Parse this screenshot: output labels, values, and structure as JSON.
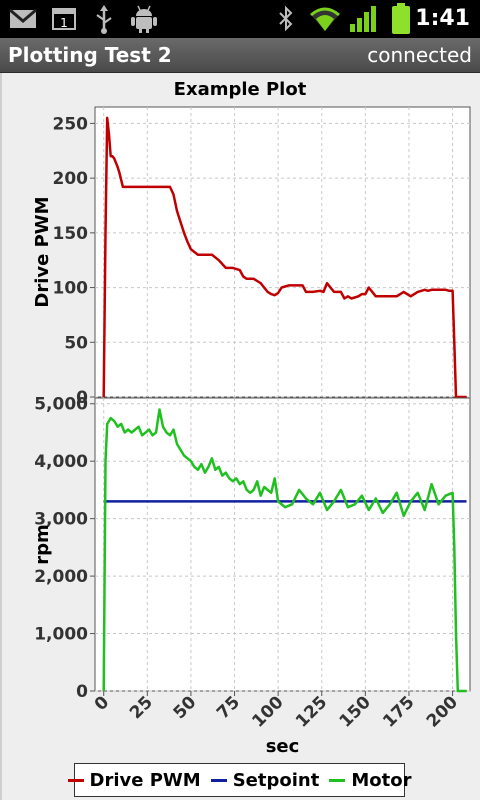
{
  "status_bar": {
    "time": "1:41",
    "icons": [
      "gmail-icon",
      "notification-count-icon",
      "usb-icon",
      "android-debug-icon",
      "bluetooth-icon",
      "wifi-icon",
      "signal-icon",
      "battery-icon"
    ],
    "notification_count": "1"
  },
  "app": {
    "title": "Plotting Test 2",
    "connection": "connected"
  },
  "colors": {
    "drive_pwm": "#c00000",
    "setpoint": "#1020a0",
    "motor": "#20c020"
  },
  "chart_data": [
    {
      "type": "line",
      "title": "Example Plot",
      "ylabel": "Drive PWM",
      "xlim": [
        -5,
        210
      ],
      "ylim": [
        0,
        265
      ],
      "yticks": [
        0,
        50,
        100,
        150,
        200,
        250
      ],
      "grid": true,
      "series": [
        {
          "name": "Drive PWM",
          "color": "#c00000",
          "x": [
            0,
            1,
            2,
            3,
            4,
            5,
            6,
            8,
            9,
            11,
            13,
            14,
            20,
            30,
            38,
            40,
            42,
            44,
            46,
            48,
            50,
            54,
            58,
            62,
            66,
            70,
            74,
            78,
            80,
            82,
            86,
            88,
            90,
            92,
            94,
            96,
            98,
            100,
            102,
            104,
            106,
            110,
            114,
            116,
            120,
            124,
            126,
            128,
            132,
            136,
            138,
            140,
            142,
            146,
            148,
            150,
            152,
            156,
            160,
            164,
            168,
            172,
            176,
            180,
            184,
            186,
            188,
            192,
            196,
            198,
            200,
            201,
            202,
            204,
            208
          ],
          "y": [
            0,
            150,
            255,
            240,
            220,
            220,
            218,
            210,
            205,
            192,
            192,
            192,
            192,
            192,
            192,
            185,
            170,
            160,
            150,
            142,
            135,
            130,
            130,
            130,
            125,
            118,
            118,
            116,
            110,
            108,
            108,
            106,
            104,
            100,
            96,
            94,
            93,
            95,
            100,
            101,
            102,
            102,
            102,
            96,
            96,
            97,
            96,
            104,
            96,
            96,
            90,
            92,
            90,
            92,
            94,
            94,
            100,
            92,
            92,
            92,
            92,
            96,
            92,
            96,
            98,
            97,
            98,
            98,
            98,
            97,
            97,
            50,
            0,
            0,
            0
          ]
        }
      ]
    },
    {
      "type": "line",
      "ylabel": "rpm",
      "xlabel": "sec",
      "xlim": [
        -5,
        210
      ],
      "ylim": [
        0,
        5100
      ],
      "yticks": [
        0,
        1000,
        2000,
        3000,
        4000,
        5000
      ],
      "yticklabels": [
        "0",
        "1,000",
        "2,000",
        "3,000",
        "4,000",
        "5,000"
      ],
      "xticks": [
        0,
        25,
        50,
        75,
        100,
        125,
        150,
        175,
        200
      ],
      "xticklabels": [
        "0",
        "25",
        "50",
        "75",
        "100",
        "125",
        "150",
        "175",
        "200"
      ],
      "grid": true,
      "series": [
        {
          "name": "Setpoint",
          "color": "#1020a0",
          "x": [
            0,
            208
          ],
          "y": [
            3300,
            3300
          ]
        },
        {
          "name": "Motor",
          "color": "#20c020",
          "x": [
            0,
            1,
            2,
            4,
            6,
            8,
            10,
            12,
            14,
            16,
            18,
            20,
            22,
            24,
            26,
            28,
            30,
            32,
            34,
            36,
            38,
            40,
            42,
            44,
            46,
            48,
            50,
            52,
            54,
            56,
            58,
            60,
            62,
            64,
            66,
            68,
            70,
            72,
            74,
            76,
            78,
            80,
            82,
            84,
            86,
            88,
            90,
            92,
            94,
            96,
            98,
            100,
            104,
            108,
            112,
            116,
            120,
            124,
            128,
            132,
            136,
            140,
            144,
            148,
            152,
            156,
            160,
            164,
            168,
            172,
            176,
            180,
            184,
            188,
            192,
            196,
            200,
            201,
            202,
            203,
            206,
            208
          ],
          "y": [
            0,
            4000,
            4650,
            4750,
            4700,
            4600,
            4650,
            4500,
            4550,
            4500,
            4550,
            4600,
            4450,
            4500,
            4550,
            4450,
            4500,
            4900,
            4600,
            4500,
            4450,
            4550,
            4300,
            4200,
            4100,
            4050,
            4000,
            3900,
            3850,
            3950,
            3800,
            3900,
            4050,
            3850,
            3900,
            3750,
            3800,
            3700,
            3650,
            3700,
            3600,
            3650,
            3500,
            3450,
            3500,
            3650,
            3400,
            3550,
            3500,
            3450,
            3700,
            3300,
            3200,
            3250,
            3500,
            3350,
            3250,
            3450,
            3150,
            3300,
            3500,
            3200,
            3250,
            3400,
            3150,
            3350,
            3100,
            3250,
            3450,
            3050,
            3300,
            3450,
            3150,
            3600,
            3250,
            3400,
            3450,
            2500,
            1000,
            0,
            0,
            0
          ]
        }
      ]
    }
  ],
  "legend": {
    "entries": [
      {
        "label": "Drive PWM",
        "color": "#c00000"
      },
      {
        "label": "Setpoint",
        "color": "#1020a0"
      },
      {
        "label": "Motor",
        "color": "#20c020"
      }
    ]
  }
}
